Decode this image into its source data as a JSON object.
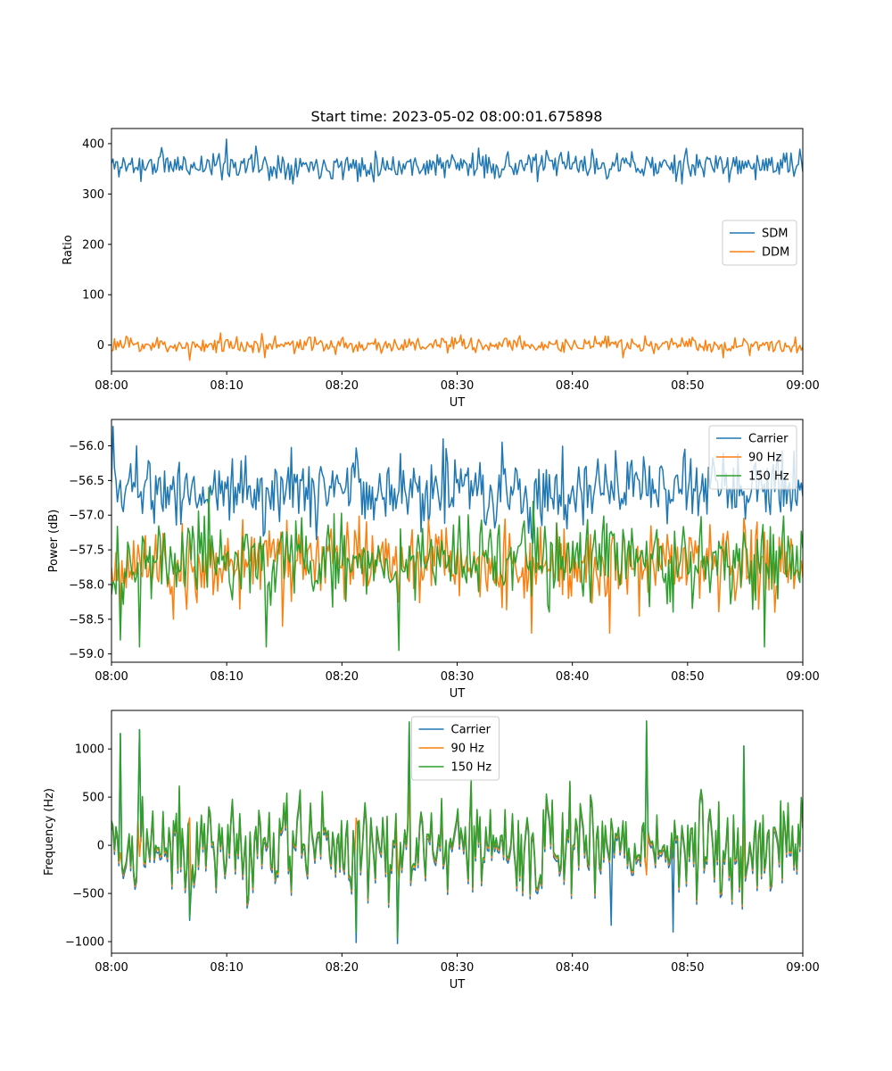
{
  "figure_title": "Start time: 2023-05-02 08:00:01.675898",
  "colors": {
    "c0": "#1f77b4",
    "c1": "#ff7f0e",
    "c2": "#2ca02c"
  },
  "chart_data": [
    {
      "type": "line",
      "xlabel": "UT",
      "ylabel": "Ratio",
      "xlim": [
        "08:00",
        "09:00"
      ],
      "ylim": [
        -52,
        430
      ],
      "xticks": [
        "08:00",
        "08:10",
        "08:20",
        "08:30",
        "08:40",
        "08:50",
        "09:00"
      ],
      "yticks": [
        0,
        100,
        200,
        300,
        400
      ],
      "legend": "center-right",
      "series": [
        {
          "name": "SDM",
          "color": "#1f77b4",
          "mean": 357,
          "amp": 13,
          "seed": 11,
          "spikes": [
            [
              0.042,
              325
            ],
            [
              0.072,
              392
            ],
            [
              0.166,
              409
            ],
            [
              0.208,
              395
            ],
            [
              0.228,
              327
            ],
            [
              0.356,
              325
            ],
            [
              0.66,
              384
            ],
            [
              0.826,
              320
            ],
            [
              0.995,
              389
            ]
          ]
        },
        {
          "name": "DDM",
          "color": "#ff7f0e",
          "mean": 0,
          "amp": 8,
          "seed": 23,
          "spikes": [
            [
              0.112,
              -30
            ],
            [
              0.158,
              24
            ],
            [
              0.218,
              23
            ],
            [
              0.222,
              -25
            ],
            [
              0.74,
              -25
            ],
            [
              0.885,
              -25
            ],
            [
              0.99,
              16
            ]
          ]
        }
      ]
    },
    {
      "type": "line",
      "xlabel": "UT",
      "ylabel": "Power (dB)",
      "xlim": [
        "08:00",
        "09:00"
      ],
      "ylim": [
        -59.12,
        -55.62
      ],
      "xticks": [
        "08:00",
        "08:10",
        "08:20",
        "08:30",
        "08:40",
        "08:50",
        "09:00"
      ],
      "yticks": [
        -56.0,
        -56.5,
        -57.0,
        -57.5,
        -58.0,
        -58.5,
        -59.0
      ],
      "legend": "top-right",
      "series": [
        {
          "name": "Carrier",
          "color": "#1f77b4",
          "mean": -56.62,
          "amp": 0.26,
          "seed": 5,
          "spikes": [
            [
              0.002,
              -55.72
            ],
            [
              0.037,
              -56.0
            ],
            [
              0.48,
              -55.9
            ],
            [
              0.83,
              -56.05
            ],
            [
              0.22,
              -57.3
            ],
            [
              0.61,
              -57.4
            ]
          ]
        },
        {
          "name": "90 Hz",
          "color": "#ff7f0e",
          "mean": -57.7,
          "amp": 0.28,
          "seed": 17,
          "spikes": [
            [
              0.013,
              -58.4
            ],
            [
              0.09,
              -58.5
            ],
            [
              0.247,
              -58.6
            ],
            [
              0.607,
              -58.7
            ],
            [
              0.72,
              -58.7
            ],
            [
              0.96,
              -58.4
            ]
          ]
        },
        {
          "name": "150 Hz",
          "color": "#2ca02c",
          "mean": -57.65,
          "amp": 0.3,
          "seed": 29,
          "spikes": [
            [
              0.013,
              -58.8
            ],
            [
              0.041,
              -58.9
            ],
            [
              0.14,
              -56.6
            ],
            [
              0.224,
              -58.9
            ],
            [
              0.416,
              -58.95
            ],
            [
              0.61,
              -56.8
            ],
            [
              0.945,
              -58.9
            ]
          ]
        }
      ]
    },
    {
      "type": "line",
      "xlabel": "UT",
      "ylabel": "Frequency (Hz)",
      "xlim": [
        "08:00",
        "09:00"
      ],
      "ylim": [
        -1120,
        1400
      ],
      "xticks": [
        "08:00",
        "08:10",
        "08:20",
        "08:30",
        "08:40",
        "08:50",
        "09:00"
      ],
      "yticks": [
        1000,
        500,
        0,
        -500,
        -1000
      ],
      "legend": "top-center",
      "series": [
        {
          "name": "Carrier",
          "color": "#1f77b4",
          "mean": 0,
          "amp": 260,
          "seed": 41,
          "offset": -50,
          "spikes": [
            [
              0.012,
              1160
            ],
            [
              0.04,
              1200
            ],
            [
              0.113,
              -780
            ],
            [
              0.353,
              -1010
            ],
            [
              0.413,
              -1020
            ],
            [
              0.43,
              1280
            ],
            [
              0.722,
              -830
            ],
            [
              0.812,
              -900
            ],
            [
              0.775,
              1290
            ],
            [
              0.915,
              1030
            ]
          ]
        },
        {
          "name": "90 Hz",
          "color": "#ff7f0e",
          "mean": 0,
          "amp": 260,
          "seed": 41,
          "offset": -20,
          "spikes": []
        },
        {
          "name": "150 Hz",
          "color": "#2ca02c",
          "mean": 0,
          "amp": 260,
          "seed": 41,
          "offset": 0,
          "spikes": [
            [
              0.012,
              1160
            ],
            [
              0.04,
              1200
            ],
            [
              0.113,
              -750
            ],
            [
              0.353,
              -900
            ],
            [
              0.413,
              -960
            ],
            [
              0.43,
              1280
            ],
            [
              0.775,
              1290
            ],
            [
              0.915,
              1030
            ]
          ]
        }
      ]
    }
  ]
}
